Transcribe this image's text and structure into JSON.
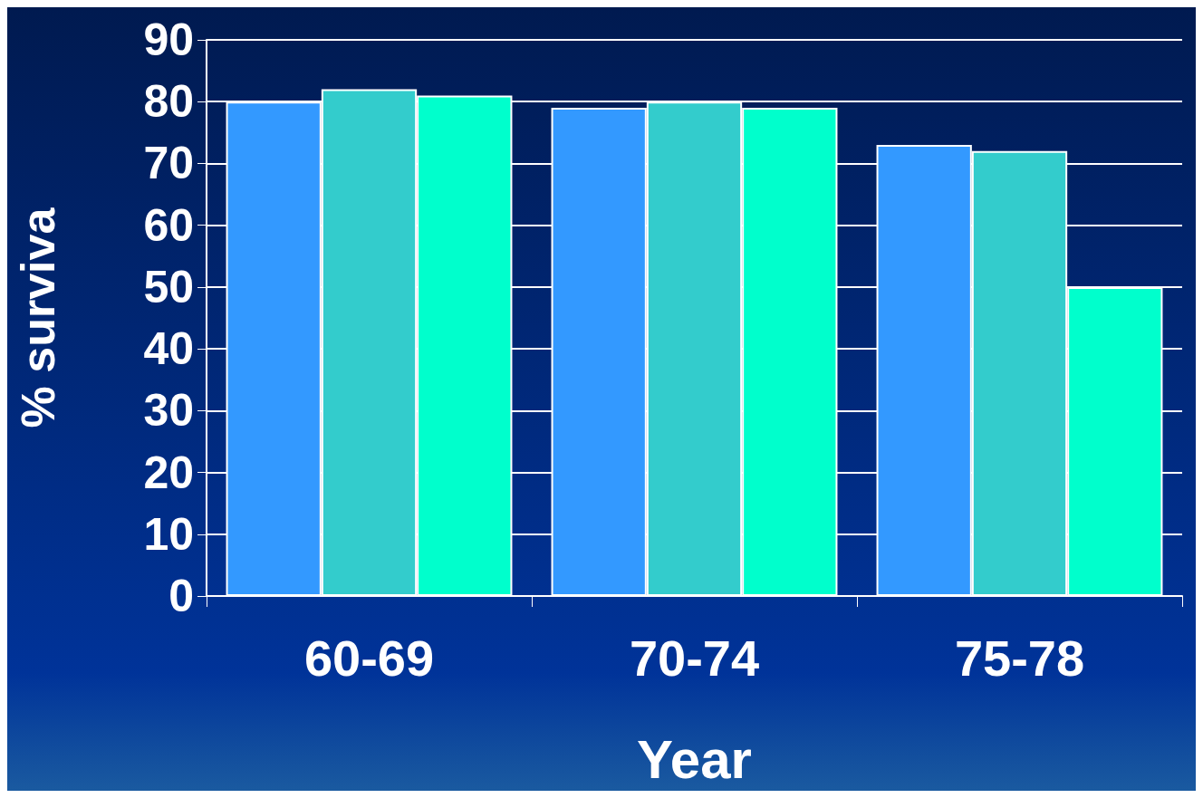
{
  "chart_data": {
    "type": "bar",
    "xlabel": "Year",
    "ylabel": "% surviva",
    "categories": [
      "60-69",
      "70-74",
      "75-78"
    ],
    "series": [
      {
        "color": "#3399ff",
        "values": [
          80,
          79,
          73
        ]
      },
      {
        "color": "#33cccc",
        "values": [
          82,
          80,
          72
        ]
      },
      {
        "color": "#00ffcc",
        "values": [
          81,
          79,
          50
        ]
      }
    ],
    "ylim": [
      0,
      90
    ],
    "yticks": [
      0,
      10,
      20,
      30,
      40,
      50,
      60,
      70,
      80,
      90
    ],
    "grid": "y"
  }
}
